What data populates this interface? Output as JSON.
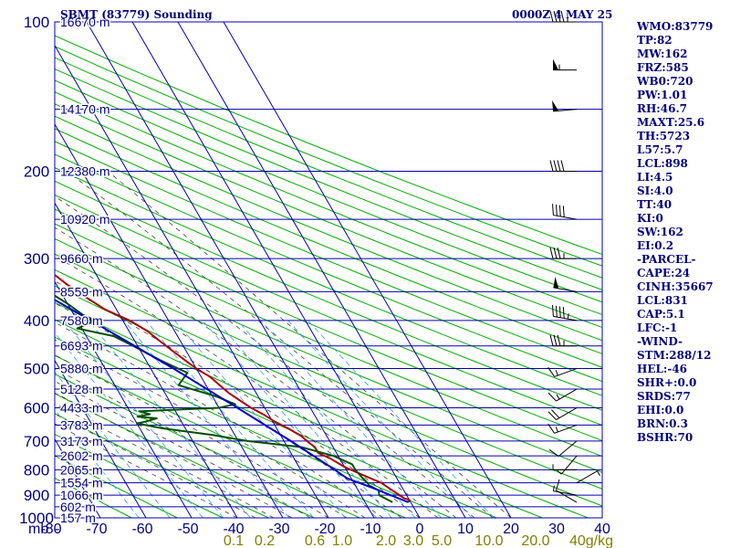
{
  "header": {
    "title": "SBMT (83779) Sounding",
    "time": "0000Z  4 MAY 25"
  },
  "indices": [
    "WMO:83779",
    "TP:82",
    "MW:162",
    "FRZ:585",
    "WB0:720",
    "PW:1.01",
    "RH:46.7",
    "MAXT:25.6",
    "TH:5723",
    "L57:5.7",
    "LCL:898",
    "LI:4.5",
    "SI:4.0",
    "TT:40",
    "KI:0",
    "SW:162",
    "EI:0.2",
    "-PARCEL-",
    "CAPE:24",
    "CINH:35667",
    "LCL:831",
    "CAP:5.1",
    "LFC:-1",
    "-WIND-",
    "STM:288/12",
    "HEL:-46",
    "SHR+:0.0",
    "SRDS:77",
    "EHI:0.0",
    "BRN:0.3",
    "BSHR:70"
  ],
  "colors": {
    "grid": "#0000b0",
    "dry_adiabat": "#00b000",
    "moist_adiabat": "#404040",
    "mixing_ratio": "#3399ff",
    "temperature": "#b00000",
    "dewpoint": "#005000",
    "parcel": "#0000cc",
    "axis_text": "#000080",
    "mixratio_text": "#808000"
  },
  "chart_data": {
    "type": "line",
    "chart_kind": "skew-T log-P sounding",
    "xlabel": "mb",
    "x_unit": "deg C",
    "y_unit": "mb",
    "ylim": [
      1000,
      100
    ],
    "xlim": [
      -80,
      20
    ],
    "pressure_ticks": [
      100,
      200,
      300,
      400,
      500,
      600,
      700,
      800,
      900,
      1000
    ],
    "temperature_ticks": [
      -80,
      -70,
      -60,
      -50,
      -40,
      -30,
      -20,
      -10,
      0,
      10,
      20,
      30,
      40
    ],
    "mixing_ratio_labels": [
      "0.1",
      "0.2",
      "0.6",
      "1.0",
      "2.0",
      "3.0",
      "5.0",
      "10.0",
      "20.0",
      "40g/kg"
    ],
    "height_labels": [
      {
        "p": 100,
        "text": "16670 m"
      },
      {
        "p": 150,
        "text": "14170 m"
      },
      {
        "p": 200,
        "text": "12380 m"
      },
      {
        "p": 250,
        "text": "10920 m"
      },
      {
        "p": 300,
        "text": "9660 m"
      },
      {
        "p": 350,
        "text": "8559 m"
      },
      {
        "p": 400,
        "text": "7580 m"
      },
      {
        "p": 450,
        "text": "6693 m"
      },
      {
        "p": 500,
        "text": "5880 m"
      },
      {
        "p": 550,
        "text": "5128 m"
      },
      {
        "p": 600,
        "text": "4433 m"
      },
      {
        "p": 650,
        "text": "3783 m"
      },
      {
        "p": 700,
        "text": "3173 m"
      },
      {
        "p": 750,
        "text": "2602 m"
      },
      {
        "p": 800,
        "text": "2065 m"
      },
      {
        "p": 850,
        "text": "1554 m"
      },
      {
        "p": 900,
        "text": "1066 m"
      },
      {
        "p": 950,
        "text": "602 m"
      },
      {
        "p": 1000,
        "text": "157 m"
      }
    ],
    "series": [
      {
        "key": "temperature",
        "points": [
          [
            930,
            19.5
          ],
          [
            920,
            20.0
          ],
          [
            912,
            19.0
          ],
          [
            900,
            18.5
          ],
          [
            880,
            17.5
          ],
          [
            850,
            16.0
          ],
          [
            820,
            13.0
          ],
          [
            790,
            10.0
          ],
          [
            760,
            8.0
          ],
          [
            740,
            6.0
          ],
          [
            720,
            6.0
          ],
          [
            700,
            5.0
          ],
          [
            685,
            4.5
          ],
          [
            660,
            2.5
          ],
          [
            640,
            0.5
          ],
          [
            620,
            -1.0
          ],
          [
            600,
            -3.0
          ],
          [
            580,
            -4.5
          ],
          [
            560,
            -6.0
          ],
          [
            540,
            -7.0
          ],
          [
            520,
            -8.0
          ],
          [
            500,
            -10.0
          ],
          [
            480,
            -11.5
          ],
          [
            460,
            -13.0
          ],
          [
            440,
            -14.5
          ],
          [
            420,
            -16.0
          ],
          [
            400,
            -18.5
          ],
          [
            380,
            -22.5
          ],
          [
            360,
            -25.0
          ],
          [
            340,
            -27.5
          ],
          [
            320,
            -29.5
          ],
          [
            300,
            -31.5
          ],
          [
            280,
            -34.0
          ],
          [
            260,
            -36.0
          ],
          [
            250,
            -37.0
          ],
          [
            240,
            -39.0
          ],
          [
            220,
            -41.5
          ],
          [
            200,
            -45.0
          ],
          [
            185,
            -48.0
          ],
          [
            170,
            -52.0
          ],
          [
            160,
            -54.0
          ],
          [
            150,
            -57.0
          ],
          [
            140,
            -60.0
          ],
          [
            130,
            -63.0
          ],
          [
            125,
            -66.0
          ],
          [
            120,
            -66.5
          ],
          [
            110,
            -68.0
          ],
          [
            100,
            -71.0
          ]
        ]
      },
      {
        "key": "dewpoint",
        "points": [
          [
            930,
            16.0
          ],
          [
            900,
            14.0
          ],
          [
            880,
            14.5
          ],
          [
            860,
            13.0
          ],
          [
            850,
            13.0
          ],
          [
            830,
            12.5
          ],
          [
            800,
            12.0
          ],
          [
            780,
            12.0
          ],
          [
            760,
            10.0
          ],
          [
            750,
            9.0
          ],
          [
            720,
            3.0
          ],
          [
            700,
            -8.0
          ],
          [
            680,
            -15.0
          ],
          [
            660,
            -25.0
          ],
          [
            645,
            -30.0
          ],
          [
            640,
            -28.0
          ],
          [
            630,
            -25.0
          ],
          [
            625,
            -29.0
          ],
          [
            618,
            -26.0
          ],
          [
            610,
            -28.0
          ],
          [
            600,
            -10.0
          ],
          [
            590,
            -6.0
          ],
          [
            570,
            -9.0
          ],
          [
            540,
            -16.0
          ],
          [
            510,
            -12.5
          ],
          [
            500,
            -14.0
          ],
          [
            480,
            -17.0
          ],
          [
            450,
            -21.0
          ],
          [
            430,
            -24.0
          ],
          [
            415,
            -31.0
          ],
          [
            400,
            -26.0
          ],
          [
            390,
            -28.0
          ],
          [
            370,
            -30.0
          ],
          [
            340,
            -34.0
          ],
          [
            320,
            -34.0
          ],
          [
            300,
            -37.0
          ],
          [
            280,
            -39.0
          ],
          [
            260,
            -42.0
          ],
          [
            245,
            -44.0
          ],
          [
            240,
            -50.0
          ],
          [
            230,
            -50.0
          ],
          [
            220,
            -51.0
          ],
          [
            205,
            -56.0
          ],
          [
            200,
            -60.0
          ],
          [
            190,
            -63.0
          ],
          [
            180,
            -66.0
          ],
          [
            165,
            -71.0
          ],
          [
            160,
            -78.0
          ],
          [
            150,
            -77.0
          ],
          [
            140,
            -80.0
          ]
        ]
      },
      {
        "key": "parcel",
        "points": [
          [
            930,
            19.5
          ],
          [
            900,
            16.5
          ],
          [
            870,
            13.5
          ],
          [
            840,
            10.0
          ],
          [
            831,
            9.0
          ],
          [
            800,
            7.5
          ],
          [
            700,
            1.5
          ],
          [
            600,
            -6.0
          ],
          [
            500,
            -15.0
          ],
          [
            400,
            -27.0
          ],
          [
            300,
            -43.0
          ],
          [
            250,
            -53.0
          ],
          [
            200,
            -65.0
          ],
          [
            150,
            -80.0
          ]
        ]
      }
    ],
    "wind_barbs": [
      {
        "p": 930,
        "dir": 300,
        "kt": 10
      },
      {
        "p": 900,
        "dir": 280,
        "kt": 5
      },
      {
        "p": 850,
        "dir": 60,
        "kt": 5
      },
      {
        "p": 800,
        "dir": 270,
        "kt": 5
      },
      {
        "p": 750,
        "dir": 220,
        "kt": 5
      },
      {
        "p": 700,
        "dir": 230,
        "kt": 10
      },
      {
        "p": 650,
        "dir": 250,
        "kt": 15
      },
      {
        "p": 600,
        "dir": 240,
        "kt": 20
      },
      {
        "p": 550,
        "dir": 240,
        "kt": 15
      },
      {
        "p": 500,
        "dir": 250,
        "kt": 15
      },
      {
        "p": 450,
        "dir": 270,
        "kt": 35
      },
      {
        "p": 400,
        "dir": 280,
        "kt": 45
      },
      {
        "p": 350,
        "dir": 280,
        "kt": 50
      },
      {
        "p": 300,
        "dir": 270,
        "kt": 35
      },
      {
        "p": 250,
        "dir": 280,
        "kt": 40
      },
      {
        "p": 200,
        "dir": 270,
        "kt": 40
      },
      {
        "p": 150,
        "dir": 265,
        "kt": 50
      },
      {
        "p": 125,
        "dir": 270,
        "kt": 55
      },
      {
        "p": 100,
        "dir": 270,
        "kt": 45
      }
    ]
  }
}
